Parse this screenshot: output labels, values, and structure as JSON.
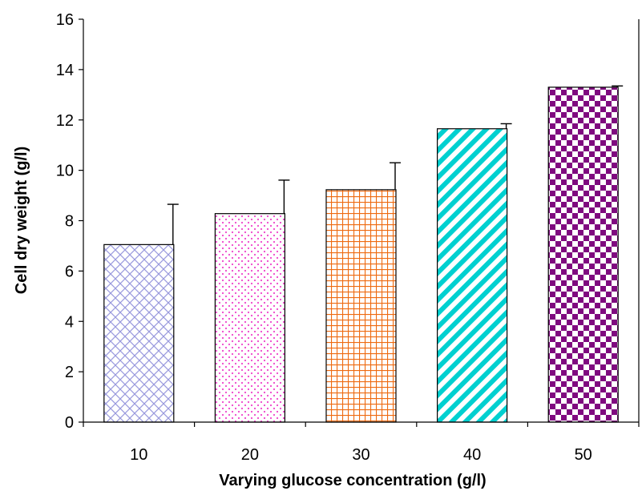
{
  "chart_data": {
    "type": "bar",
    "title": "",
    "xlabel": "Varying glucose concentration (g/l)",
    "ylabel": "Cell dry weight (g/l)",
    "categories": [
      "10",
      "20",
      "30",
      "40",
      "50"
    ],
    "values": [
      7.05,
      8.28,
      9.23,
      11.65,
      13.3
    ],
    "errors": [
      1.6,
      1.33,
      1.07,
      0.2,
      0.05
    ],
    "ylim": [
      0,
      16
    ],
    "yticks": [
      0,
      2,
      4,
      6,
      8,
      10,
      12,
      14,
      16
    ],
    "grid": false,
    "legend": "none",
    "bar_styles": [
      {
        "pattern": "diagonal-crosshatch",
        "color": "#9999dd"
      },
      {
        "pattern": "dotted",
        "color": "#ee44cc"
      },
      {
        "pattern": "grid",
        "color": "#ee6a10"
      },
      {
        "pattern": "diagonal-stripes",
        "color": "#00d0d0"
      },
      {
        "pattern": "checkerboard",
        "color": "#7f0a7f"
      }
    ],
    "error_bar_color": "#000000",
    "axis_color": "#000000"
  }
}
